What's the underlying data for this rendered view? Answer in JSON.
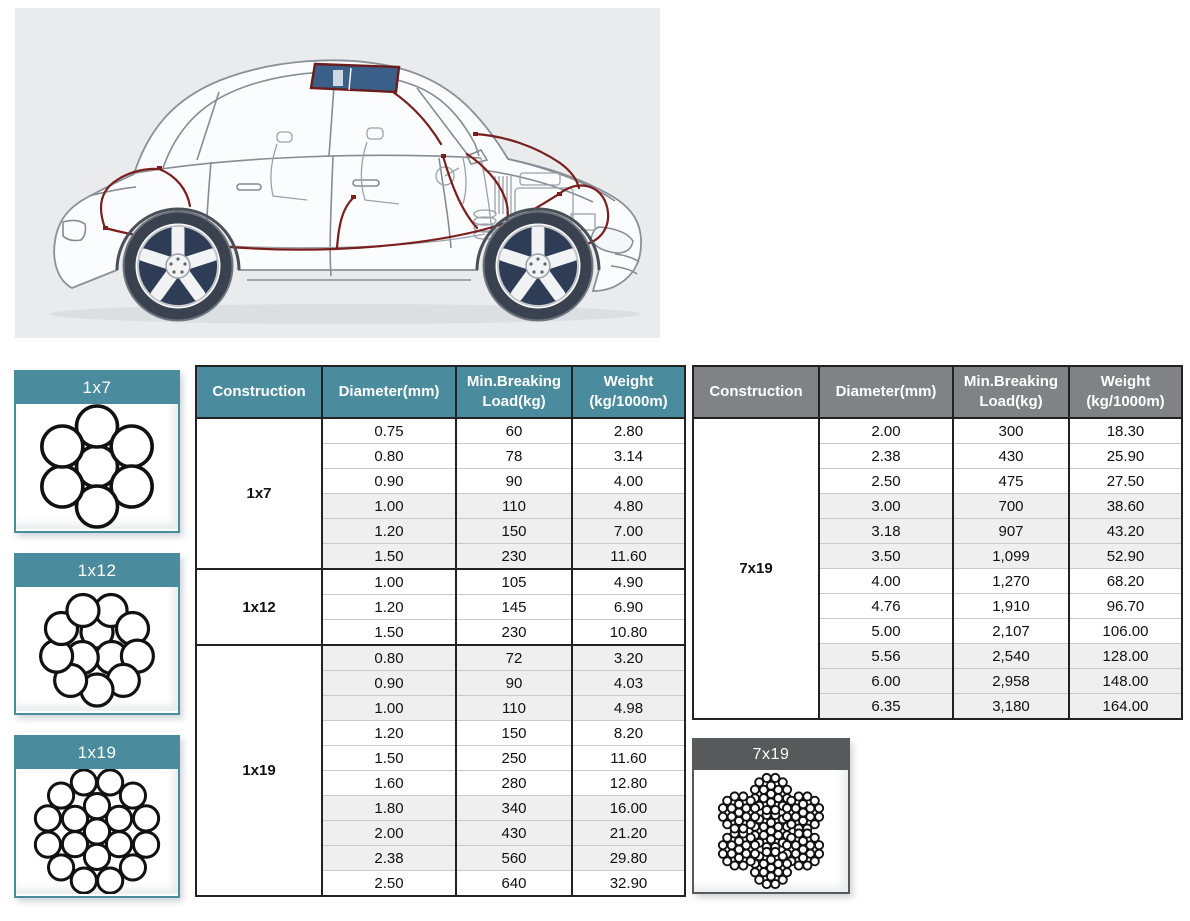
{
  "colors": {
    "teal_header": "#4A8B9D",
    "gray_header": "#808285",
    "dark_panel_header": "#58595B",
    "stripe_row": "#EFEFEF",
    "hero_background": "#E9EBED",
    "wiring_red": "#7A1E1E",
    "sunroof_blue": "#3A608A"
  },
  "hero": {
    "description": "cutaway line drawing of a sedan showing red wiring harness routing"
  },
  "panels": [
    {
      "label": "1x7",
      "construction": "1x7",
      "theme": "teal"
    },
    {
      "label": "1x12",
      "construction": "1x12",
      "theme": "teal"
    },
    {
      "label": "1x19",
      "construction": "1x19",
      "theme": "teal"
    },
    {
      "label": "7x19",
      "construction": "7x19",
      "theme": "dark"
    }
  ],
  "tables": [
    {
      "theme": "teal",
      "columns": [
        "Construction",
        "Diameter(mm)",
        "Min.Breaking\nLoad(kg)",
        "Weight\n(kg/1000m)"
      ],
      "groups": [
        {
          "construction": "1x7",
          "rows": [
            [
              "0.75",
              "60",
              "2.80"
            ],
            [
              "0.80",
              "78",
              "3.14"
            ],
            [
              "0.90",
              "90",
              "4.00"
            ],
            [
              "1.00",
              "110",
              "4.80"
            ],
            [
              "1.20",
              "150",
              "7.00"
            ],
            [
              "1.50",
              "230",
              "11.60"
            ]
          ]
        },
        {
          "construction": "1x12",
          "rows": [
            [
              "1.00",
              "105",
              "4.90"
            ],
            [
              "1.20",
              "145",
              "6.90"
            ],
            [
              "1.50",
              "230",
              "10.80"
            ]
          ]
        },
        {
          "construction": "1x19",
          "rows": [
            [
              "0.80",
              "72",
              "3.20"
            ],
            [
              "0.90",
              "90",
              "4.03"
            ],
            [
              "1.00",
              "110",
              "4.98"
            ],
            [
              "1.20",
              "150",
              "8.20"
            ],
            [
              "1.50",
              "250",
              "11.60"
            ],
            [
              "1.60",
              "280",
              "12.80"
            ],
            [
              "1.80",
              "340",
              "16.00"
            ],
            [
              "2.00",
              "430",
              "21.20"
            ],
            [
              "2.38",
              "560",
              "29.80"
            ],
            [
              "2.50",
              "640",
              "32.90"
            ]
          ]
        }
      ]
    },
    {
      "theme": "gray",
      "columns": [
        "Construction",
        "Diameter(mm)",
        "Min.Breaking\nLoad(kg)",
        "Weight\n(kg/1000m)"
      ],
      "groups": [
        {
          "construction": "7x19",
          "rows": [
            [
              "2.00",
              "300",
              "18.30"
            ],
            [
              "2.38",
              "430",
              "25.90"
            ],
            [
              "2.50",
              "475",
              "27.50"
            ],
            [
              "3.00",
              "700",
              "38.60"
            ],
            [
              "3.18",
              "907",
              "43.20"
            ],
            [
              "3.50",
              "1,099",
              "52.90"
            ],
            [
              "4.00",
              "1,270",
              "68.20"
            ],
            [
              "4.76",
              "1,910",
              "96.70"
            ],
            [
              "5.00",
              "2,107",
              "106.00"
            ],
            [
              "5.56",
              "2,540",
              "128.00"
            ],
            [
              "6.00",
              "2,958",
              "148.00"
            ],
            [
              "6.35",
              "3,180",
              "164.00"
            ]
          ]
        }
      ]
    }
  ]
}
